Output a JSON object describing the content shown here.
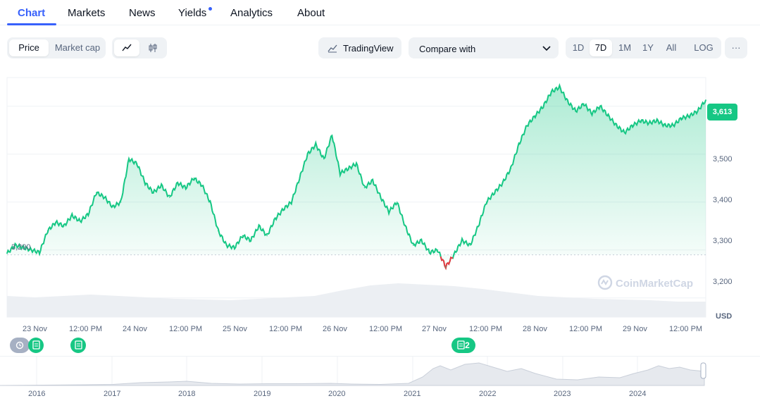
{
  "tabs": [
    {
      "label": "Chart",
      "active": true
    },
    {
      "label": "Markets"
    },
    {
      "label": "News"
    },
    {
      "label": "Yields",
      "has_dot": true
    },
    {
      "label": "Analytics"
    },
    {
      "label": "About"
    }
  ],
  "toolbar": {
    "mode_price": "Price",
    "mode_marketcap": "Market cap",
    "chart_line_icon": "line-chart-icon",
    "chart_candle_icon": "candlestick-icon",
    "tradingview": "TradingView",
    "compare": "Compare with",
    "ranges": [
      "1D",
      "7D",
      "1M",
      "1Y",
      "All"
    ],
    "active_range": "7D",
    "log": "LOG",
    "more": "···"
  },
  "chart": {
    "start_price_label": "3,290",
    "current_price_label": "3,613",
    "watermark": "CoinMarketCap",
    "y_ticks": [
      "3,500",
      "3,400",
      "3,300",
      "3,200"
    ],
    "currency": "USD",
    "x_ticks": [
      "23 Nov",
      "12:00 PM",
      "24 Nov",
      "12:00 PM",
      "25 Nov",
      "12:00 PM",
      "26 Nov",
      "12:00 PM",
      "27 Nov",
      "12:00 PM",
      "28 Nov",
      "12:00 PM",
      "29 Nov",
      "12:00 PM"
    ],
    "event_marker_count": "2",
    "overview_years": [
      "2016",
      "2017",
      "2018",
      "2019",
      "2020",
      "2021",
      "2022",
      "2023",
      "2024"
    ]
  },
  "chart_data": {
    "type": "line",
    "title": "",
    "ylabel": "USD",
    "ylim": [
      3160,
      3660
    ],
    "x_ticks": [
      "23 Nov",
      "12:00 PM",
      "24 Nov",
      "12:00 PM",
      "25 Nov",
      "12:00 PM",
      "26 Nov",
      "12:00 PM",
      "27 Nov",
      "12:00 PM",
      "28 Nov",
      "12:00 PM",
      "29 Nov",
      "12:00 PM"
    ],
    "baseline": 3290,
    "current": 3613,
    "series": [
      {
        "values": [
          3293,
          3310,
          3305,
          3300,
          3295,
          3340,
          3358,
          3350,
          3372,
          3360,
          3375,
          3420,
          3410,
          3390,
          3400,
          3490,
          3480,
          3440,
          3420,
          3435,
          3410,
          3440,
          3430,
          3450,
          3435,
          3400,
          3340,
          3310,
          3305,
          3330,
          3320,
          3350,
          3330,
          3365,
          3385,
          3400,
          3450,
          3500,
          3520,
          3490,
          3540,
          3460,
          3470,
          3480,
          3430,
          3445,
          3410,
          3380,
          3400,
          3350,
          3310,
          3320,
          3295,
          3300,
          3265,
          3290,
          3320,
          3310,
          3350,
          3400,
          3420,
          3440,
          3470,
          3520,
          3560,
          3580,
          3600,
          3630,
          3640,
          3610,
          3590,
          3605,
          3585,
          3600,
          3580,
          3560,
          3545,
          3560,
          3570,
          3565,
          3570,
          3560,
          3560,
          3575,
          3580,
          3590,
          3613
        ]
      }
    ]
  }
}
